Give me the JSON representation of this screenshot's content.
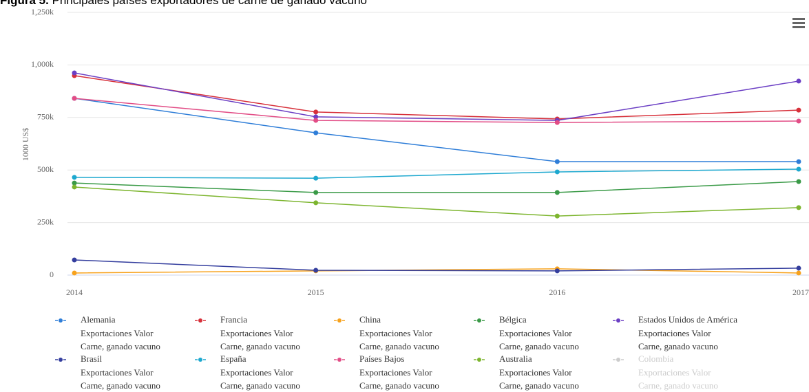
{
  "chart_data": {
    "type": "line",
    "title_label": "Figura 5.",
    "title": "Principales países exportadores de carne de ganado vacuno",
    "ylabel": "1000 US$",
    "categories": [
      "2014",
      "2015",
      "2016",
      "2017"
    ],
    "ylim": [
      0,
      1250000
    ],
    "yticks": [
      0,
      {
        "value": 250000,
        "label": "250k"
      },
      {
        "value": 500000,
        "label": "500k"
      },
      {
        "value": 750000,
        "label": "750k"
      },
      {
        "value": 1000000,
        "label": "1,000k"
      },
      {
        "value": 1250000,
        "label": "1,250k"
      }
    ],
    "grid": true,
    "series": [
      {
        "name": "Alemania",
        "description": [
          "Exportaciones Valor",
          "Carne, ganado vacuno"
        ],
        "color": "#2f7ed8",
        "visible": true,
        "values": [
          841000,
          677000,
          540000,
          540000
        ]
      },
      {
        "name": "Francia",
        "description": [
          "Exportaciones Valor",
          "Carne, ganado vacuno"
        ],
        "color": "#d7303a",
        "visible": true,
        "values": [
          949000,
          776000,
          743000,
          785000
        ]
      },
      {
        "name": "China",
        "description": [
          "Exportaciones Valor",
          "Carne, ganado vacuno"
        ],
        "color": "#f7a21c",
        "visible": true,
        "values": [
          10000,
          20000,
          30000,
          10000
        ]
      },
      {
        "name": "Bélgica",
        "description": [
          "Exportaciones Valor",
          "Carne, ganado vacuno"
        ],
        "color": "#3a9a47",
        "visible": true,
        "values": [
          438000,
          393000,
          393000,
          445000
        ]
      },
      {
        "name": "Estados Unidos de América",
        "description": [
          "Exportaciones Valor",
          "Carne, ganado vacuno"
        ],
        "color": "#6b3fc4",
        "visible": true,
        "values": [
          962000,
          753000,
          736000,
          923000
        ]
      },
      {
        "name": "Brasil",
        "description": [
          "Exportaciones Valor",
          "Carne, ganado vacuno"
        ],
        "color": "#343e9e",
        "visible": true,
        "values": [
          72000,
          23000,
          20000,
          33000
        ]
      },
      {
        "name": "España",
        "description": [
          "Exportaciones Valor",
          "Carne, ganado vacuno"
        ],
        "color": "#1da8cf",
        "visible": true,
        "values": [
          465000,
          461000,
          491000,
          504000
        ]
      },
      {
        "name": "Países Bajos",
        "description": [
          "Exportaciones Valor",
          "Carne, ganado vacuno"
        ],
        "color": "#e24d86",
        "visible": true,
        "values": [
          841000,
          736000,
          726000,
          733000
        ]
      },
      {
        "name": "Australia",
        "description": [
          "Exportaciones Valor",
          "Carne, ganado vacuno"
        ],
        "color": "#7db52f",
        "visible": true,
        "values": [
          419000,
          344000,
          281000,
          321000
        ]
      },
      {
        "name": "Colombia",
        "description": [
          "Exportaciones Valor",
          "Carne, ganado vacuno"
        ],
        "color": "#cccccc",
        "visible": false,
        "values": [
          null,
          null,
          null,
          null
        ]
      }
    ]
  }
}
